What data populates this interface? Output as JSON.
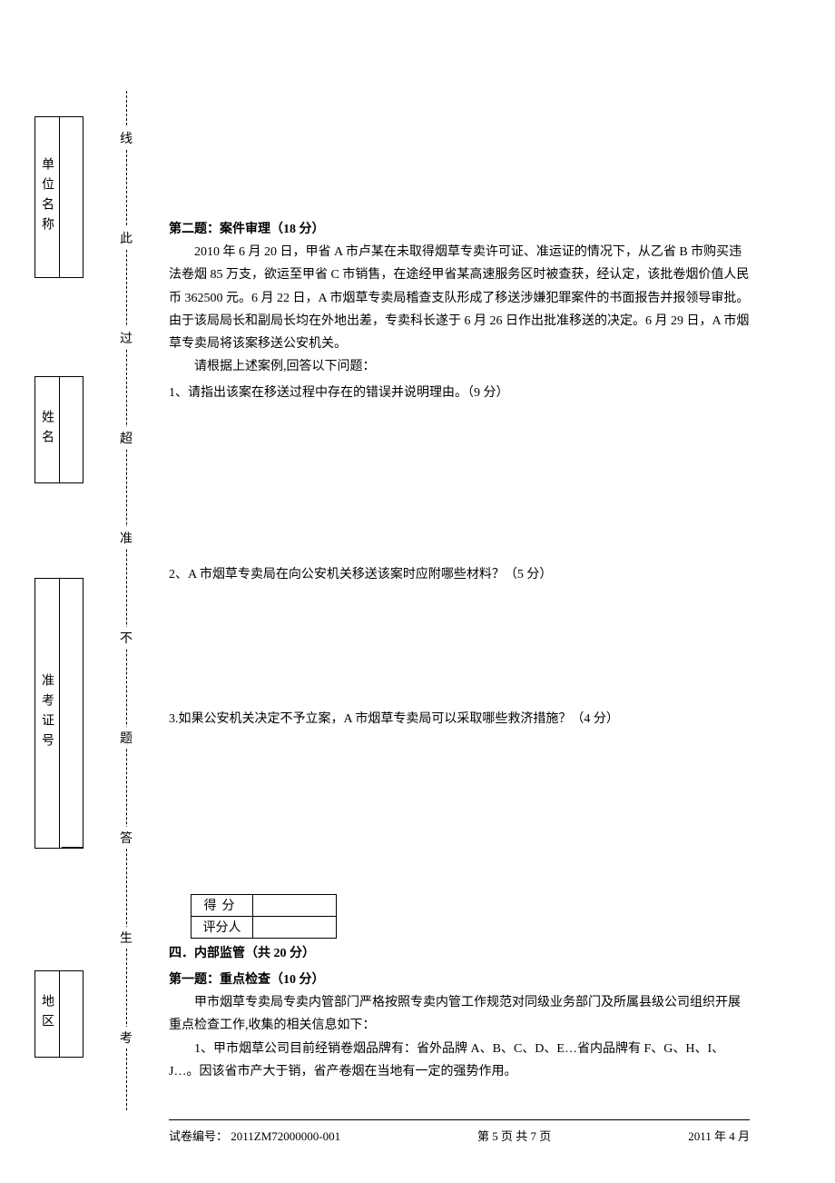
{
  "binding": {
    "unit_label": "单位名称",
    "name_label": "姓名",
    "id_label": "准考证号",
    "id_cells": 13,
    "region_label": "地区"
  },
  "cutline": "考生答题不准超过此线",
  "section2": {
    "title": "第二题：案件审理（18 分）",
    "body": [
      "2010 年 6 月 20 日，甲省 A 市卢某在未取得烟草专卖许可证、准运证的情况下，从乙省 B 市购买违法卷烟 85 万支，欲运至甲省 C 市销售，在途经甲省某高速服务区时被查获，经认定，该批卷烟价值人民币 362500 元。6 月 22 日，A 市烟草专卖局稽查支队形成了移送涉嫌犯罪案件的书面报告并报领导审批。由于该局局长和副局长均在外地出差，专卖科长遂于 6 月 26 日作出批准移送的决定。6 月 29 日，A 市烟草专卖局将该案移送公安机关。",
      "请根据上述案例,回答以下问题："
    ],
    "q1": "1、请指出该案在移送过程中存在的错误并说明理由。（9 分）",
    "q2": "2、A 市烟草专卖局在向公安机关移送该案时应附哪些材料？（5 分）",
    "q3": "3.如果公安机关决定不予立案，A 市烟草专卖局可以采取哪些救济措施？（4 分）"
  },
  "score_table": {
    "row1": "得分",
    "row2": "评分人"
  },
  "section4": {
    "heading": "四．内部监管（共 20 分）",
    "sub": "第一题：重点检查（10 分）",
    "body": [
      "甲市烟草专卖局专卖内管部门严格按照专卖内管工作规范对同级业务部门及所属县级公司组织开展重点检查工作,收集的相关信息如下：",
      "1、甲市烟草公司目前经销卷烟品牌有：省外品牌 A、B、C、D、E…省内品牌有 F、G、H、I、J…。因该省市产大于销，省产卷烟在当地有一定的强势作用。"
    ]
  },
  "footer": {
    "left": "试卷编号： 2011ZM72000000-001",
    "center": "第 5 页 共 7 页",
    "right": "2011 年 4 月"
  }
}
